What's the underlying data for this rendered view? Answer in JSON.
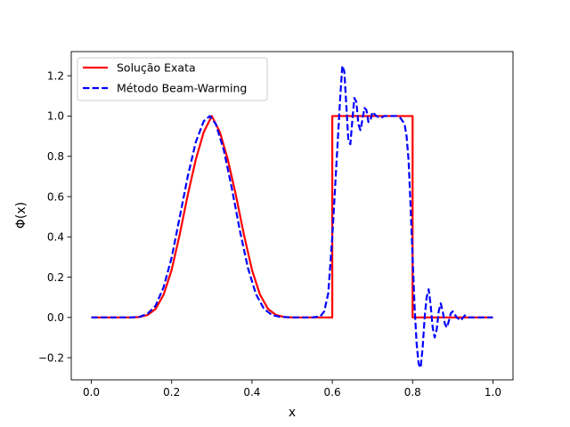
{
  "chart_data": {
    "type": "line",
    "title": "",
    "xlabel": "x",
    "ylabel": "Φ(x)",
    "xlim": [
      -0.05,
      1.05
    ],
    "ylim": [
      -0.31,
      1.32
    ],
    "xticks": [
      0.0,
      0.2,
      0.4,
      0.6,
      0.8,
      1.0
    ],
    "xtick_labels": [
      "0.0",
      "0.2",
      "0.4",
      "0.6",
      "0.8",
      "1.0"
    ],
    "yticks": [
      -0.2,
      0.0,
      0.2,
      0.4,
      0.6,
      0.8,
      1.0,
      1.2
    ],
    "ytick_labels": [
      "−0.2",
      "0.0",
      "0.2",
      "0.4",
      "0.6",
      "0.8",
      "1.0",
      "1.2"
    ],
    "grid": false,
    "legend_position": "upper-left",
    "series": [
      {
        "name": "Solução Exata",
        "color": "#ff0000",
        "style": "solid",
        "x": [
          0.0,
          0.1,
          0.12,
          0.14,
          0.16,
          0.18,
          0.2,
          0.22,
          0.24,
          0.26,
          0.28,
          0.3,
          0.32,
          0.34,
          0.36,
          0.38,
          0.4,
          0.42,
          0.44,
          0.46,
          0.48,
          0.5,
          0.6,
          0.6,
          0.8,
          0.8,
          1.0
        ],
        "y": [
          0.0,
          0.0,
          0.002,
          0.012,
          0.042,
          0.113,
          0.236,
          0.411,
          0.607,
          0.783,
          0.921,
          1.0,
          0.921,
          0.783,
          0.607,
          0.411,
          0.236,
          0.113,
          0.042,
          0.012,
          0.002,
          0.0,
          0.0,
          1.0,
          1.0,
          0.0,
          0.0
        ]
      },
      {
        "name": "Método Beam-Warming",
        "color": "#0000ff",
        "style": "dashed",
        "x": [
          0.0,
          0.1,
          0.12,
          0.14,
          0.16,
          0.18,
          0.2,
          0.22,
          0.24,
          0.26,
          0.28,
          0.295,
          0.31,
          0.33,
          0.35,
          0.37,
          0.39,
          0.41,
          0.43,
          0.45,
          0.47,
          0.5,
          0.55,
          0.57,
          0.58,
          0.59,
          0.6,
          0.61,
          0.62,
          0.625,
          0.63,
          0.635,
          0.64,
          0.645,
          0.65,
          0.655,
          0.66,
          0.665,
          0.67,
          0.675,
          0.68,
          0.685,
          0.69,
          0.695,
          0.7,
          0.71,
          0.72,
          0.73,
          0.74,
          0.75,
          0.76,
          0.77,
          0.78,
          0.785,
          0.79,
          0.795,
          0.8,
          0.805,
          0.81,
          0.815,
          0.82,
          0.825,
          0.83,
          0.835,
          0.84,
          0.845,
          0.85,
          0.855,
          0.86,
          0.865,
          0.87,
          0.875,
          0.88,
          0.885,
          0.89,
          0.895,
          0.9,
          0.91,
          0.92,
          0.93,
          0.94,
          0.96,
          1.0
        ],
        "y": [
          0.0,
          0.0,
          0.003,
          0.018,
          0.058,
          0.15,
          0.297,
          0.497,
          0.699,
          0.87,
          0.975,
          1.0,
          0.96,
          0.83,
          0.64,
          0.43,
          0.245,
          0.115,
          0.042,
          0.012,
          0.003,
          0.0,
          0.0,
          0.005,
          0.03,
          0.12,
          0.4,
          0.75,
          1.1,
          1.25,
          1.22,
          1.05,
          0.88,
          0.86,
          0.98,
          1.09,
          1.07,
          0.96,
          0.93,
          0.98,
          1.04,
          1.03,
          0.97,
          0.98,
          1.02,
          1.0,
          0.99,
          1.0,
          1.0,
          1.0,
          1.0,
          0.99,
          0.96,
          0.9,
          0.78,
          0.55,
          0.3,
          0.05,
          -0.13,
          -0.23,
          -0.25,
          -0.15,
          0.0,
          0.1,
          0.14,
          0.06,
          -0.05,
          -0.1,
          -0.06,
          0.03,
          0.07,
          0.03,
          -0.03,
          -0.05,
          -0.02,
          0.02,
          0.03,
          0.0,
          -0.015,
          0.01,
          0.0,
          0.0,
          0.0
        ]
      }
    ]
  }
}
